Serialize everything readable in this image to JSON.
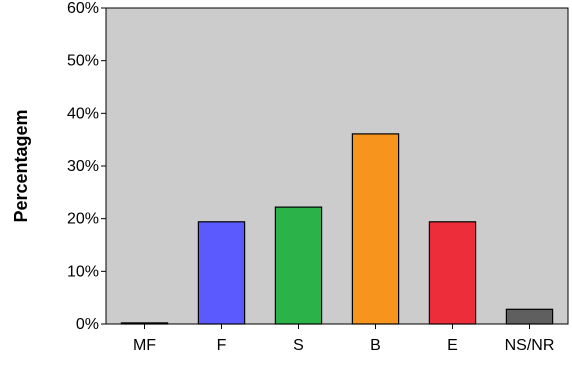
{
  "chart_data": {
    "type": "bar",
    "title": "",
    "xlabel": "",
    "ylabel": "Percentagem",
    "categories": [
      "MF",
      "F",
      "S",
      "B",
      "E",
      "NS/NR"
    ],
    "values": [
      0.2,
      19.4,
      22.2,
      36.1,
      19.4,
      2.8
    ],
    "colors": [
      "#4a4a4a",
      "#5a5aff",
      "#2bb34a",
      "#f7941d",
      "#ee2d3a",
      "#5f5f5f"
    ],
    "ylim": [
      0,
      60
    ],
    "yticks": [
      0,
      10,
      20,
      30,
      40,
      50,
      60
    ],
    "ytick_labels": [
      "0%",
      "10%",
      "20%",
      "30%",
      "40%",
      "50%",
      "60%"
    ],
    "plot_background": "#cccccc",
    "grid": false,
    "legend": "none"
  }
}
